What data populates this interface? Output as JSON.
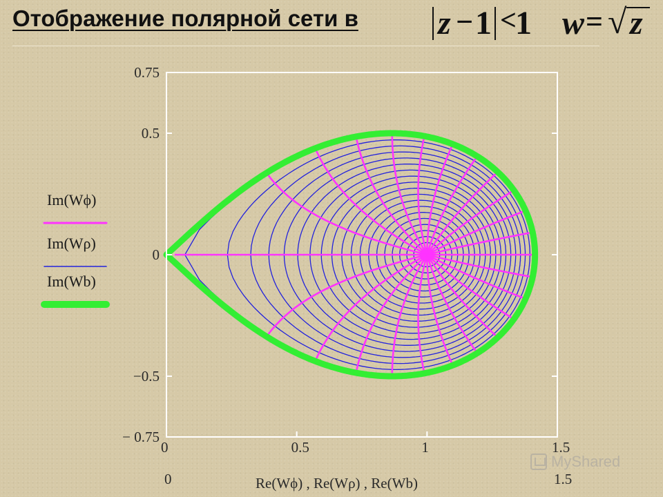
{
  "title": "Отображение полярной сети в",
  "formula": {
    "z": "z",
    "minus": "−",
    "one_a": "1",
    "lt": "<",
    "one_b": "1",
    "w": "w",
    "eq": "=",
    "sqrt": "√",
    "z2": "z"
  },
  "watermark": "MyShared",
  "chart_data": {
    "type": "line",
    "title": "",
    "xlabel": "Re(Wϕ) , Re(Wρ) , Re(Wb)",
    "ylabel": "",
    "xlim": [
      0,
      1.5
    ],
    "ylim": [
      -0.75,
      0.75
    ],
    "x_ticks": [
      0,
      0.5,
      1,
      1.5
    ],
    "x_tick_labels": [
      "0",
      "0.5",
      "1",
      "1.5"
    ],
    "x_range_labels": [
      "0",
      "1.5"
    ],
    "y_ticks": [
      0.75,
      0.5,
      0,
      -0.5,
      -0.75
    ],
    "y_tick_labels": [
      "0.75",
      "0.5",
      "0",
      "−0.5",
      "− 0.75"
    ],
    "grid": false,
    "legend_position": "left",
    "mapping": "w = sqrt(z), |z − 1| < 1",
    "series": [
      {
        "name": "Im(Wϕ)",
        "color": "#ff33ff",
        "description": "images of rays from z = 1"
      },
      {
        "name": "Im(Wρ)",
        "color": "#2222dd",
        "description": "images of circles |z − 1| = r"
      },
      {
        "name": "Im(Wb)",
        "color": "#33ee33",
        "description": "image of boundary |z − 1| = 1"
      }
    ],
    "rays": 24,
    "circles": 20
  }
}
